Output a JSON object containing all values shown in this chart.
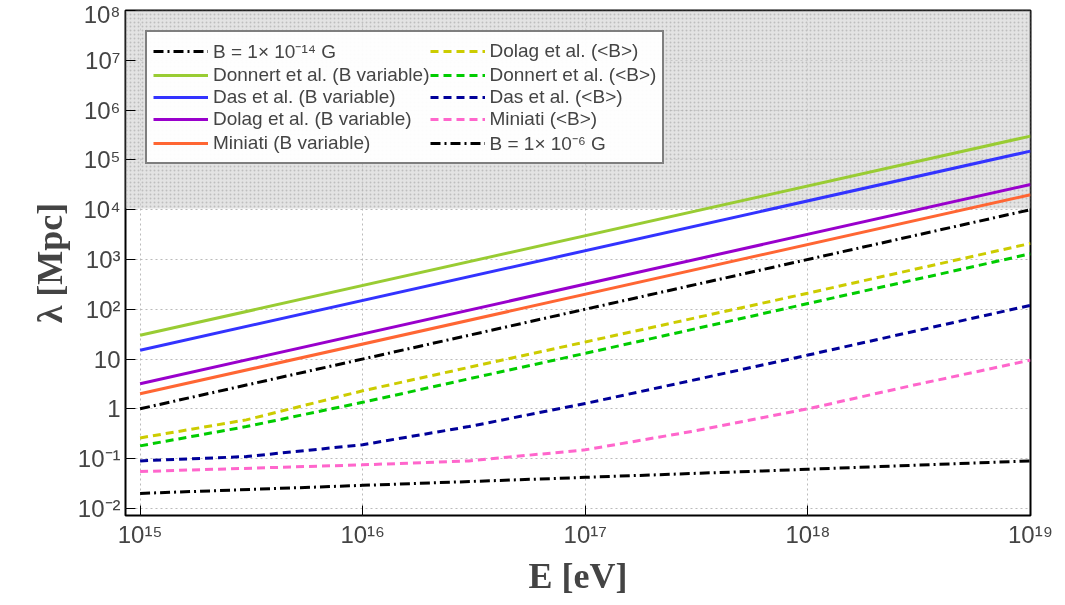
{
  "chart_data": {
    "type": "line",
    "xlabel": "E [eV]",
    "ylabel": "λ [Mpc]",
    "log": "xy",
    "grid": true,
    "legend": "top left",
    "xlim": [
      860000000000000.0,
      1e+19
    ],
    "ylim": [
      0.0072,
      100000000.0
    ],
    "xticks": [
      {
        "value": 1000000000000000.0,
        "label": "10¹⁵"
      },
      {
        "value": 1e+16,
        "label": "10¹⁶"
      },
      {
        "value": 1e+17,
        "label": "10¹⁷"
      },
      {
        "value": 1e+18,
        "label": "10¹⁸"
      },
      {
        "value": 1e+19,
        "label": "10¹⁹"
      }
    ],
    "yticks": [
      {
        "value": 0.01,
        "label": "10⁻²"
      },
      {
        "value": 0.1,
        "label": "10⁻¹"
      },
      1,
      10,
      {
        "value": 100,
        "label": "10²"
      },
      {
        "value": 1000,
        "label": "10³"
      },
      {
        "value": 10000,
        "label": "10⁴"
      },
      {
        "value": 100000,
        "label": "10⁵"
      },
      {
        "value": 1000000,
        "label": "10⁶"
      },
      {
        "value": 10000000,
        "label": "10⁷"
      },
      {
        "value": 100000000,
        "label": "10⁸"
      }
    ],
    "bands": [
      {
        "axis": "y",
        "from": 10500,
        "to": 100000000,
        "color": "#d0d0d0"
      }
    ],
    "series": [
      {
        "name": "B = 1× 10⁻¹⁴ G",
        "color": "#000000",
        "line_style": "dashdot",
        "x": [
          1000000000000000.0,
          1e+16,
          1e+17,
          1e+18,
          1e+19
        ],
        "values": [
          0.02,
          0.029,
          0.042,
          0.061,
          0.09
        ]
      },
      {
        "name": "Donnert et al. (B variable)",
        "color": "#99cc33",
        "line_style": "solid",
        "x": [
          1000000000000000.0,
          1e+19
        ],
        "values": [
          30,
          300000
        ]
      },
      {
        "name": "Das et al. (B variable)",
        "color": "#3333ff",
        "line_style": "solid",
        "x": [
          1000000000000000.0,
          1e+19
        ],
        "values": [
          15,
          150000
        ]
      },
      {
        "name": "Dolag et al. (B variable)",
        "color": "#9900cc",
        "line_style": "solid",
        "x": [
          1000000000000000.0,
          1e+19
        ],
        "values": [
          3.2,
          32000
        ]
      },
      {
        "name": "Miniati (B variable)",
        "color": "#ff6633",
        "line_style": "solid",
        "x": [
          1000000000000000.0,
          1e+19
        ],
        "values": [
          2,
          20000
        ]
      },
      {
        "name": "Dolag et al. (<B>)",
        "color": "#cccc00",
        "line_style": "dashed",
        "x": [
          1000000000000000.0,
          3000000000000000.0,
          1e+16,
          3e+16,
          1e+17,
          1e+18,
          1e+19
        ],
        "values": [
          0.26,
          0.6,
          2.3,
          6.8,
          22,
          210,
          2100
        ]
      },
      {
        "name": "Donnert et al. (<B>)",
        "color": "#00cc00",
        "line_style": "dashed",
        "x": [
          1000000000000000.0,
          3000000000000000.0,
          1e+16,
          3e+16,
          1e+17,
          1e+18,
          1e+19
        ],
        "values": [
          0.18,
          0.44,
          1.35,
          4,
          13,
          130,
          1300
        ]
      },
      {
        "name": "Das et al. (<B>)",
        "color": "#000099",
        "line_style": "dashed",
        "x": [
          1000000000000000.0,
          3000000000000000.0,
          1e+16,
          3e+16,
          1e+17,
          3e+17,
          1e+18,
          1e+19
        ],
        "values": [
          0.09,
          0.11,
          0.19,
          0.44,
          1.28,
          3.7,
          12,
          120
        ]
      },
      {
        "name": "Miniati (<B>)",
        "color": "#ff66cc",
        "line_style": "dashed",
        "x": [
          1000000000000000.0,
          1e+16,
          3e+16,
          1e+17,
          3e+17,
          1e+18,
          3e+18,
          1e+19
        ],
        "values": [
          0.055,
          0.075,
          0.09,
          0.15,
          0.35,
          1.0,
          3,
          9.5
        ]
      },
      {
        "name": "B = 1× 10⁻⁶ G",
        "color": "#000000",
        "line_style": "dashdot",
        "x": [
          1000000000000000.0,
          1e+19
        ],
        "values": [
          1,
          10000
        ]
      }
    ]
  }
}
